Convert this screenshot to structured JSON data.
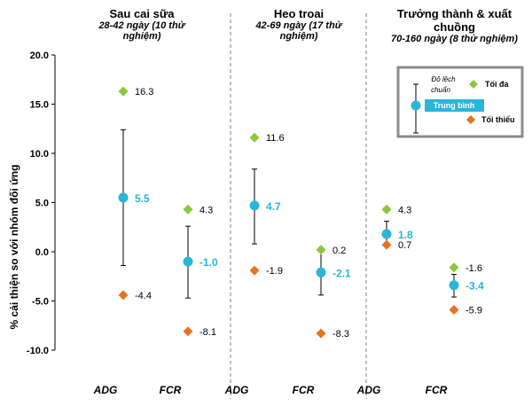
{
  "chart_data": {
    "type": "scatter",
    "ylabel": "% cải thiện so với nhóm đối ứng",
    "ylim": [
      -10,
      20
    ],
    "y_ticks": [
      "20.0",
      "15.0",
      "10.0",
      "5.0",
      "0.0",
      "-5.0",
      "-10.0"
    ],
    "panels": [
      {
        "title": "Sau cai sữa",
        "subtitle": "28-42 ngày (10 thử nghiệm)",
        "metrics": [
          {
            "name": "ADG",
            "max": 16.3,
            "mean": 5.5,
            "sd_low": -1.4,
            "sd_high": 12.4,
            "min": -4.4,
            "max_label": "16.3",
            "mean_label": "5.5",
            "min_label": "-4.4"
          },
          {
            "name": "FCR",
            "max": 4.3,
            "mean": -1.0,
            "sd_low": -4.7,
            "sd_high": 2.6,
            "min": -8.1,
            "max_label": "4.3",
            "mean_label": "-1.0",
            "min_label": "-8.1"
          }
        ]
      },
      {
        "title": "Heo troai",
        "subtitle": "42-69 ngày (17 thử nghiệm)",
        "metrics": [
          {
            "name": "ADG",
            "max": 11.6,
            "mean": 4.7,
            "sd_low": 0.8,
            "sd_high": 8.4,
            "min": -1.9,
            "max_label": "11.6",
            "mean_label": "4.7",
            "min_label": "-1.9"
          },
          {
            "name": "FCR",
            "max": 0.2,
            "mean": -2.1,
            "sd_low": -4.4,
            "sd_high": 0.2,
            "min": -8.3,
            "max_label": "0.2",
            "mean_label": "-2.1",
            "min_label": "-8.3"
          }
        ]
      },
      {
        "title": "Trưởng thành & xuất chuồng",
        "subtitle": "70-160 ngày (8 thử nghiệm)",
        "metrics": [
          {
            "name": "ADG",
            "max": 4.3,
            "mean": 1.8,
            "sd_low": 0.9,
            "sd_high": 3.1,
            "min": 0.7,
            "max_label": "4.3",
            "mean_label": "1.8",
            "min_label": "0.7"
          },
          {
            "name": "FCR",
            "max": -1.6,
            "mean": -3.4,
            "sd_low": -4.6,
            "sd_high": -2.3,
            "min": -5.9,
            "max_label": "-1.6",
            "mean_label": "-3.4",
            "min_label": "-5.9"
          }
        ]
      }
    ],
    "legend": {
      "position": "top-right",
      "sd_label": "Độ lệch chuẩn",
      "max_label": "Tối đa",
      "mean_label": "Trung bình",
      "min_label": "Tối thiểu"
    },
    "colors": {
      "max": "#8cc63f",
      "mean": "#29b6d8",
      "min": "#e8731e",
      "error_bar": "#000000",
      "divider": "#808080",
      "legend_border": "#8c8c8c"
    },
    "grid": false
  }
}
